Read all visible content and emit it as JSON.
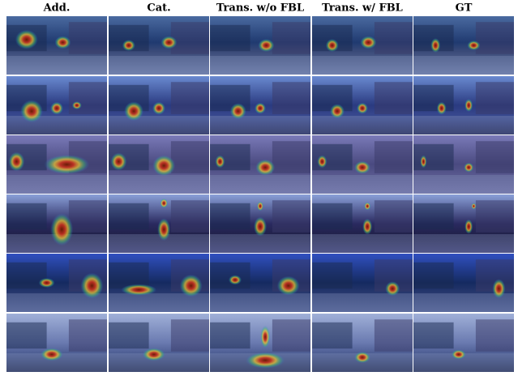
{
  "header": {
    "columns": [
      "Add.",
      "Cat.",
      "Trans. w/o FBL",
      "Trans. w/  FBL",
      "GT"
    ]
  }
}
